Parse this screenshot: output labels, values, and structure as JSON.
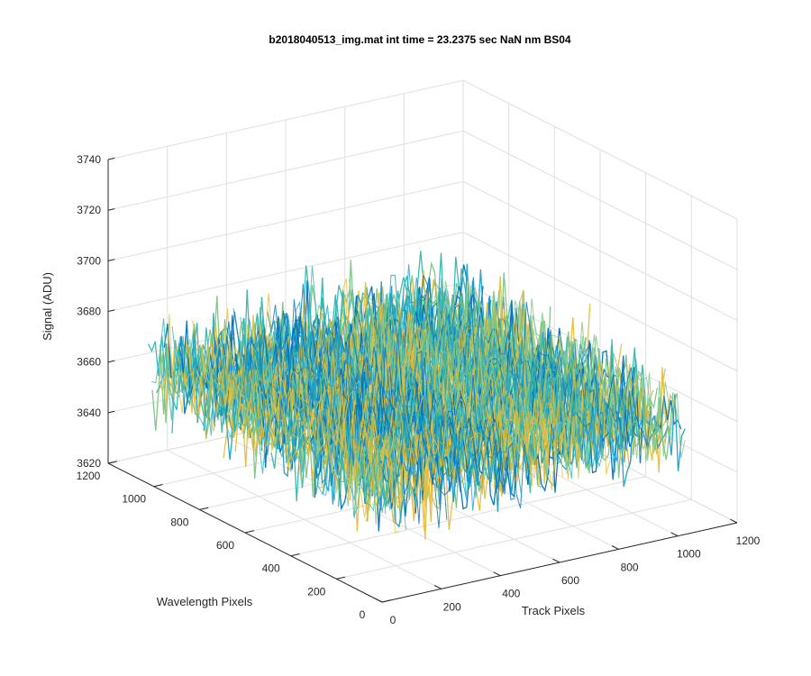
{
  "chart_data": {
    "type": "surface",
    "title": "b2018040513_img.mat int time = 23.2375 sec  NaN nm BS04",
    "xlabel": "Track Pixels",
    "ylabel": "Wavelength Pixels",
    "zlabel": "Signal (ADU)",
    "xlim": [
      0,
      1200
    ],
    "ylim": [
      0,
      1200
    ],
    "zlim": [
      3620,
      3740
    ],
    "xticks": [
      "0",
      "200",
      "400",
      "600",
      "800",
      "1000",
      "1200"
    ],
    "yticks": [
      "0",
      "200",
      "400",
      "600",
      "800",
      "1000",
      "1200"
    ],
    "zticks": [
      "3620",
      "3640",
      "3660",
      "3680",
      "3700",
      "3720",
      "3740"
    ],
    "grid": true,
    "surface": {
      "track_range": [
        0,
        1024
      ],
      "wavelength_range": [
        0,
        1024
      ],
      "signal_mean": 3665,
      "signal_typical_range": [
        3640,
        3710
      ],
      "colormap": [
        "#0072BD",
        "#1A9DC9",
        "#35B5B0",
        "#7CC486",
        "#E6BE3C"
      ]
    }
  }
}
